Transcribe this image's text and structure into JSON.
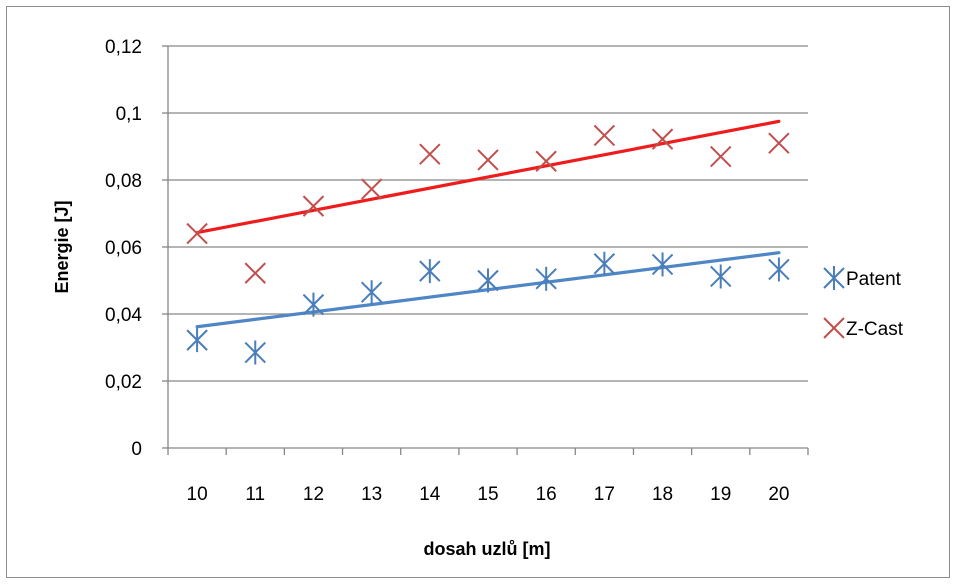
{
  "chart_data": {
    "type": "scatter",
    "xlabel": "dosah uzlů [m]",
    "ylabel": "Energie [J]",
    "categories": [
      "10",
      "11",
      "12",
      "13",
      "14",
      "15",
      "16",
      "17",
      "18",
      "19",
      "20"
    ],
    "y_ticks": [
      "0",
      "0,02",
      "0,04",
      "0,06",
      "0,08",
      "0,1",
      "0,12"
    ],
    "ylim": [
      0,
      0.12
    ],
    "grid": true,
    "legend_position": "right",
    "series": [
      {
        "name": "Patent",
        "marker": "asterisk",
        "color": "#4a7ebb",
        "values": [
          0.0322,
          0.0285,
          0.0428,
          0.0465,
          0.0528,
          0.05,
          0.0505,
          0.055,
          0.0548,
          0.0512,
          0.0533
        ],
        "trendline": {
          "color": "#4f86c6",
          "start": 0.0362,
          "end": 0.0583
        }
      },
      {
        "name": "Z-Cast",
        "marker": "x",
        "color": "#c0504d",
        "values": [
          0.064,
          0.0522,
          0.0722,
          0.0773,
          0.0877,
          0.086,
          0.0856,
          0.0933,
          0.0922,
          0.087,
          0.091
        ],
        "trendline": {
          "color": "#ee1c1c",
          "start": 0.0643,
          "end": 0.0975
        }
      }
    ]
  }
}
